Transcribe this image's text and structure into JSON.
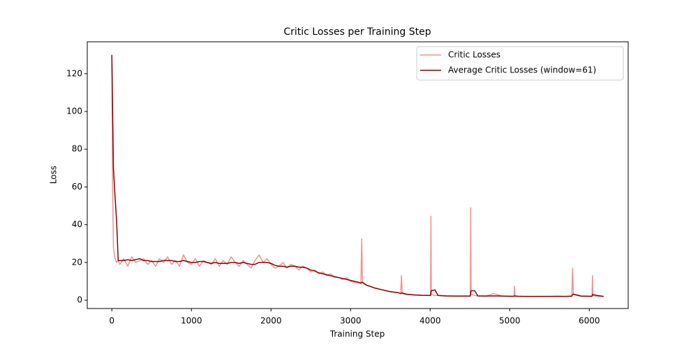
{
  "chart_data": {
    "type": "line",
    "title": "Critic Losses per Training Step",
    "x_label": "Training Step",
    "y_label": "Loss",
    "x": [
      0,
      10,
      20,
      40,
      60,
      80,
      100,
      150,
      200,
      250,
      300,
      350,
      400,
      450,
      500,
      550,
      600,
      650,
      700,
      750,
      800,
      850,
      900,
      950,
      1000,
      1050,
      1100,
      1150,
      1200,
      1250,
      1300,
      1350,
      1400,
      1450,
      1500,
      1550,
      1600,
      1650,
      1700,
      1750,
      1800,
      1850,
      1900,
      1950,
      2000,
      2050,
      2100,
      2150,
      2200,
      2250,
      2300,
      2350,
      2400,
      2450,
      2500,
      2550,
      2600,
      2650,
      2700,
      2750,
      2800,
      2850,
      2900,
      2950,
      3000,
      3050,
      3100,
      3130,
      3140,
      3150,
      3200,
      3300,
      3400,
      3500,
      3600,
      3630,
      3640,
      3650,
      3700,
      3800,
      3900,
      4000,
      4005,
      4010,
      4015,
      4060,
      4100,
      4200,
      4300,
      4400,
      4500,
      4505,
      4510,
      4515,
      4560,
      4600,
      4700,
      4800,
      4900,
      5000,
      5055,
      5060,
      5065,
      5100,
      5200,
      5300,
      5400,
      5500,
      5600,
      5700,
      5780,
      5790,
      5800,
      5900,
      6000,
      6035,
      6040,
      6045,
      6100,
      6180
    ],
    "series": [
      {
        "name": "Critic Losses",
        "color": "#f3908f",
        "values": [
          130,
          60,
          28,
          22,
          20,
          21,
          19,
          22,
          18,
          23,
          20,
          21,
          22,
          19,
          21,
          18,
          22,
          20,
          23,
          19,
          21,
          18,
          24,
          20,
          19,
          22,
          18,
          21,
          20,
          19,
          22,
          18,
          21,
          19,
          23,
          20,
          18,
          21,
          19,
          17,
          21,
          24,
          20,
          22,
          19,
          17,
          18,
          20,
          17,
          19,
          18,
          16,
          18,
          17,
          15,
          16,
          14,
          15,
          13,
          14,
          12,
          12,
          11,
          12,
          10,
          9.5,
          9,
          9,
          32.5,
          9,
          8,
          6.5,
          5.5,
          4.5,
          4,
          3.5,
          13,
          3.5,
          3,
          2.8,
          2.5,
          2.5,
          3,
          44.5,
          3,
          2.5,
          2.5,
          2.2,
          2.2,
          2.2,
          2.2,
          2.5,
          49,
          3,
          2.5,
          2.2,
          2.2,
          3.5,
          2.2,
          2,
          2,
          7.5,
          2,
          2,
          2,
          2,
          2,
          2,
          2.2,
          2,
          2,
          17,
          3,
          2,
          2,
          2,
          13,
          2.5,
          2,
          2
        ]
      },
      {
        "name": "Average Critic Losses (window=61)",
        "color": "#8b0000",
        "values": [
          130,
          100,
          70,
          55,
          42,
          21,
          21,
          21,
          21.5,
          21,
          21.5,
          22,
          21,
          21,
          20.5,
          20.5,
          20.5,
          21,
          21,
          21,
          20.5,
          20.5,
          21,
          20.5,
          20,
          20,
          20.5,
          20.5,
          20,
          19.5,
          20,
          19.5,
          19.5,
          19.5,
          20,
          20,
          19.5,
          20,
          19.5,
          19,
          19,
          20,
          20,
          20,
          19.5,
          18.5,
          18,
          18,
          17.5,
          18,
          18,
          17.5,
          17.5,
          17,
          16,
          15.5,
          14.5,
          14,
          13.5,
          13,
          12.5,
          12,
          11.5,
          11,
          10.5,
          10,
          9.5,
          9,
          9.5,
          9.5,
          8,
          6.5,
          5.5,
          4.5,
          4,
          3.5,
          3.8,
          3.8,
          3.2,
          2.8,
          2.6,
          2.5,
          2.5,
          4.5,
          5,
          5.5,
          2.5,
          2.3,
          2.2,
          2.2,
          2.2,
          2.2,
          4.5,
          5,
          5,
          2.3,
          2.2,
          2.3,
          2.2,
          2.1,
          2.1,
          2.3,
          2.3,
          2.1,
          2,
          2,
          2,
          2,
          2,
          2,
          2.2,
          3,
          3.2,
          2.2,
          2.1,
          2.1,
          3,
          3,
          2.5,
          2
        ]
      }
    ],
    "xlim": [
      -309,
      6489
    ],
    "ylim": [
      -4.4,
      136.9
    ],
    "xticks": [
      0,
      1000,
      2000,
      3000,
      4000,
      5000,
      6000
    ],
    "yticks": [
      0,
      20,
      40,
      60,
      80,
      100,
      120
    ],
    "legend": "upper right"
  }
}
